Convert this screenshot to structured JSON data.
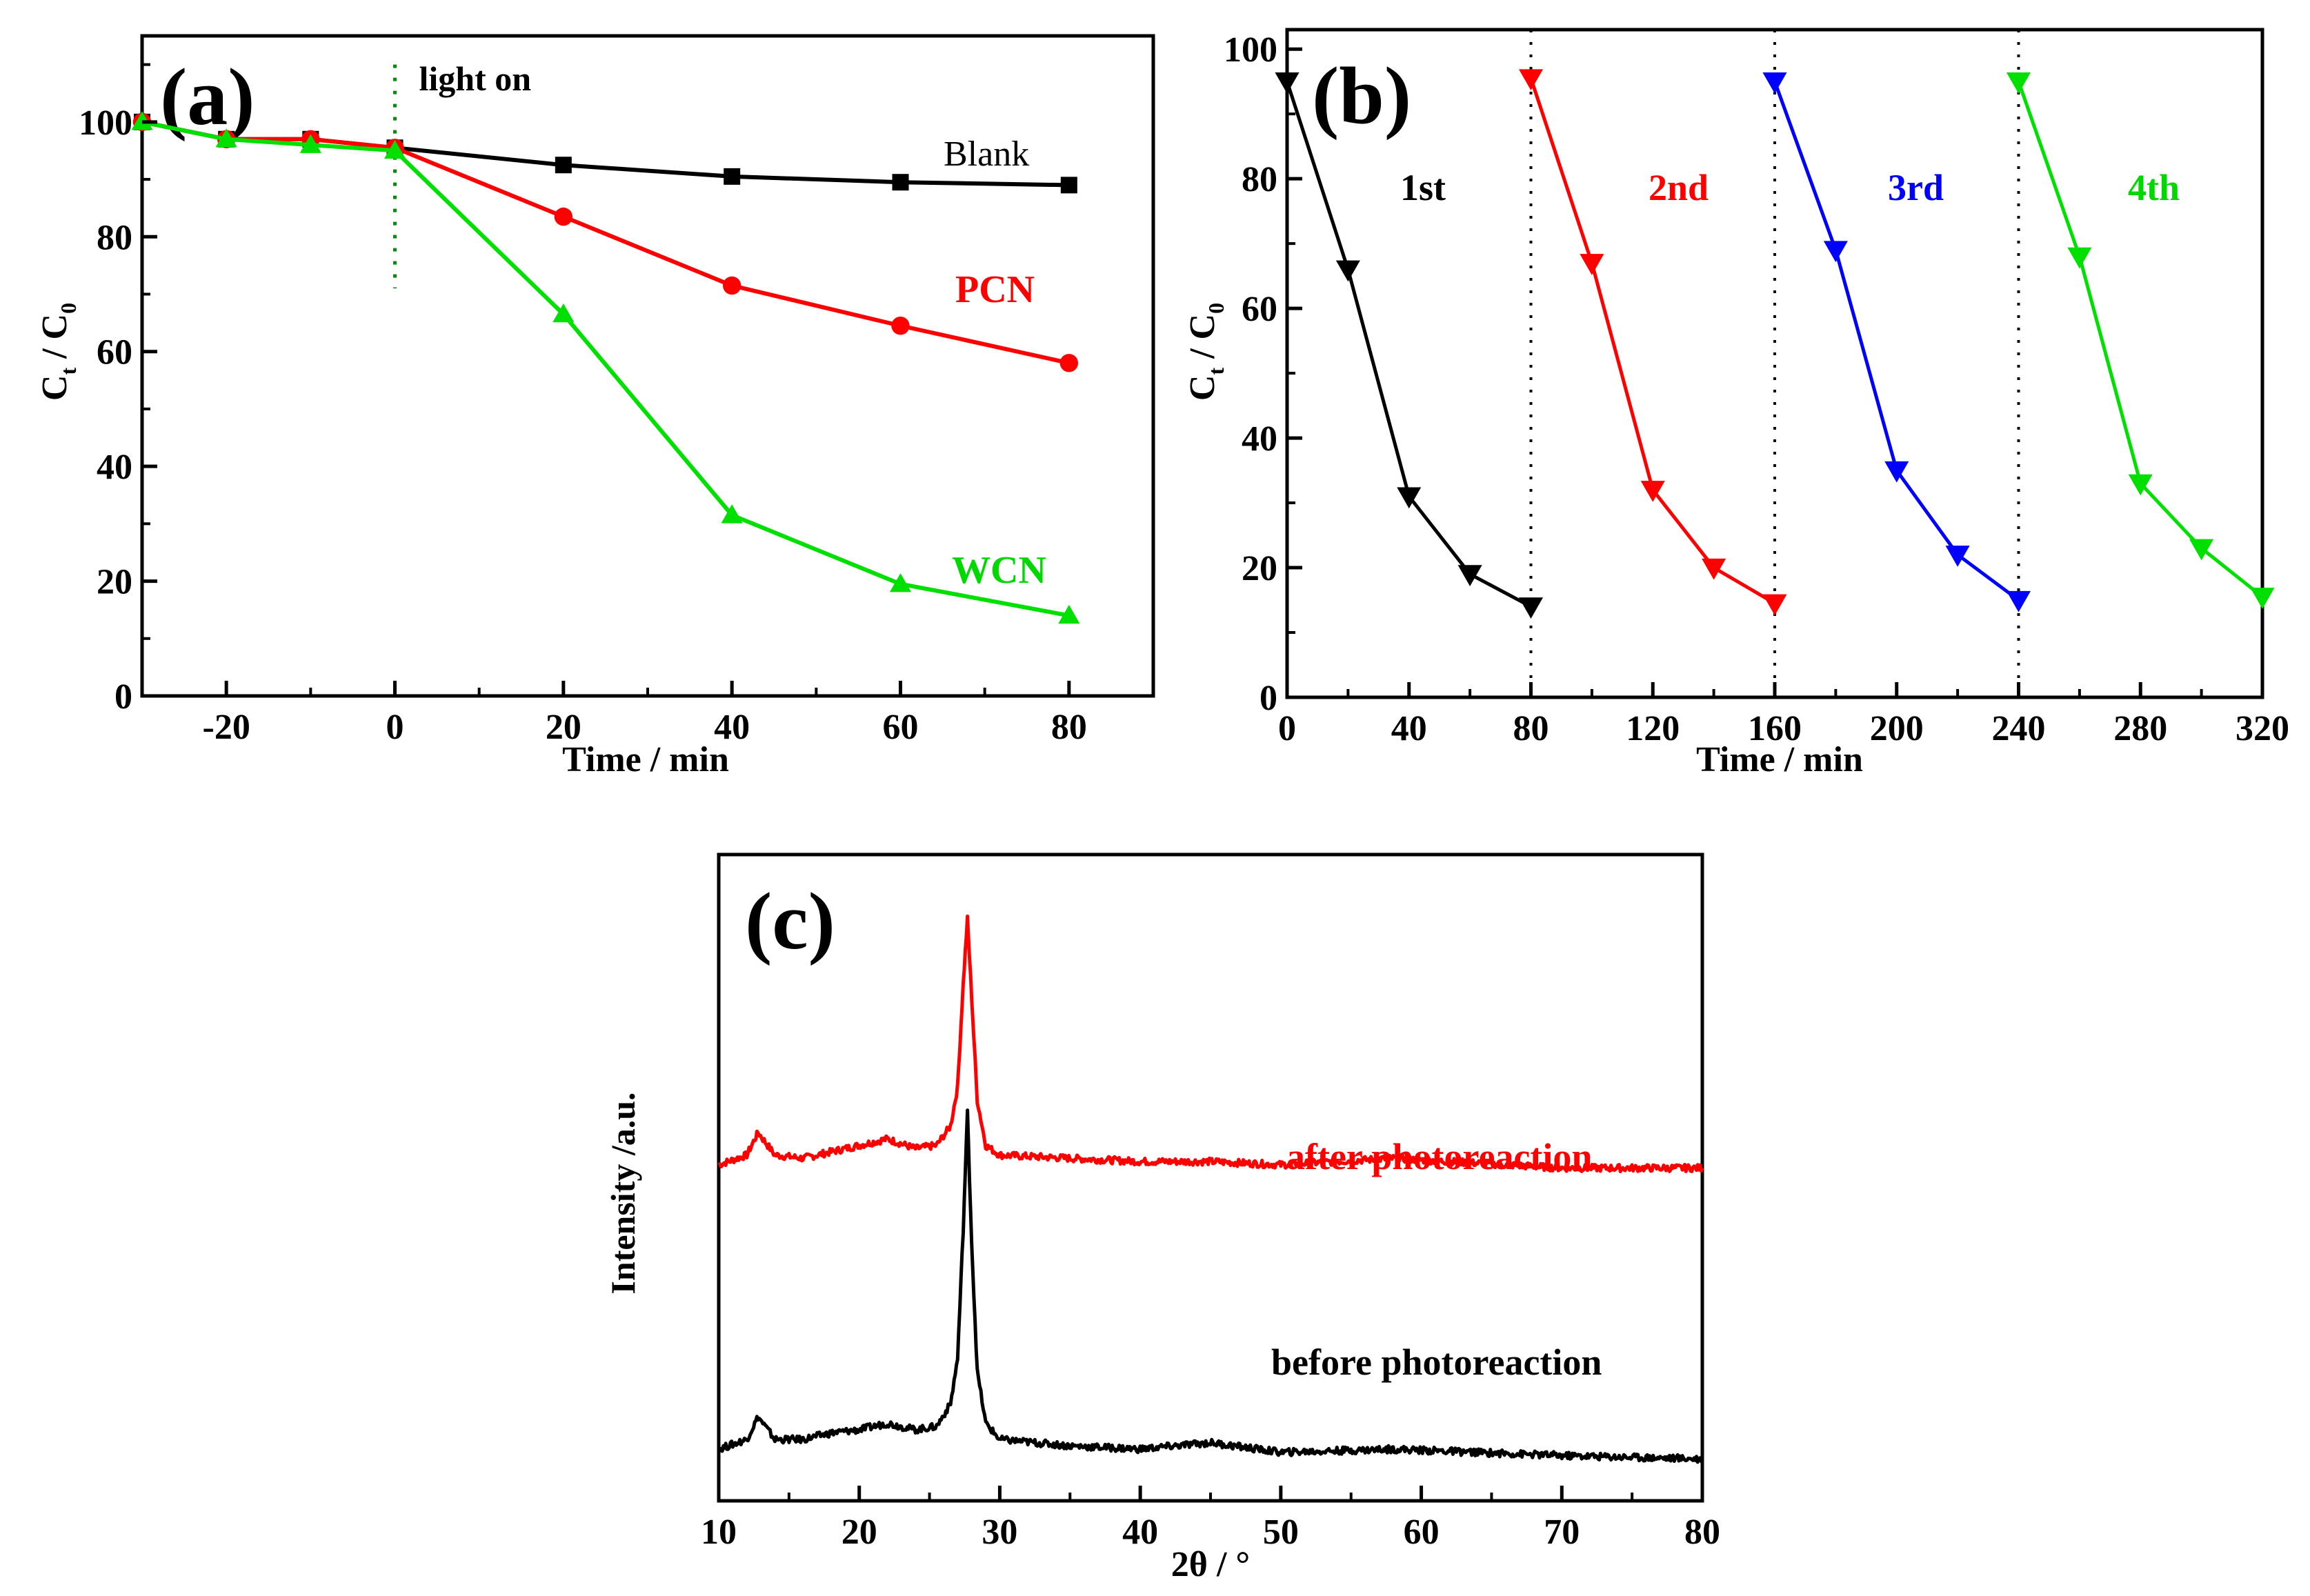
{
  "chart_data": [
    {
      "type": "line",
      "panel_label": "(a)",
      "xlabel": "Time / min",
      "ylabel": "C",
      "ylabel_sub": "t",
      "ylabel_sep": " / C",
      "ylabel_sub2": "0",
      "xlim": [
        -30,
        90
      ],
      "ylim": [
        0,
        115
      ],
      "xticks": [
        -20,
        0,
        20,
        40,
        60,
        80
      ],
      "yticks": [
        0,
        20,
        40,
        60,
        80,
        100
      ],
      "annotation": {
        "text": "light on",
        "x": 0
      },
      "series": [
        {
          "name": "Blank",
          "color": "#000000",
          "marker": "square",
          "x": [
            -30,
            -20,
            -10,
            0,
            20,
            40,
            60,
            80
          ],
          "y": [
            100,
            97,
            97,
            95.5,
            92.5,
            90.5,
            89.5,
            89
          ]
        },
        {
          "name": "PCN",
          "color": "#ff0000",
          "marker": "circle",
          "x": [
            -30,
            -20,
            -10,
            0,
            20,
            40,
            60,
            80
          ],
          "y": [
            100,
            97,
            97,
            95.5,
            83.5,
            71.5,
            64.5,
            58
          ]
        },
        {
          "name": "WCN",
          "color": "#00e000",
          "marker": "triangle-up",
          "x": [
            -30,
            -20,
            -10,
            0,
            20,
            40,
            60,
            80
          ],
          "y": [
            100,
            97,
            96,
            95,
            66.5,
            31.5,
            19.5,
            14
          ]
        }
      ]
    },
    {
      "type": "line",
      "panel_label": "(b)",
      "xlabel": "Time / min",
      "ylabel": "C",
      "ylabel_sub": "t",
      "ylabel_sep": " / C",
      "ylabel_sub2": "0",
      "xlim": [
        0,
        320
      ],
      "ylim": [
        0,
        103
      ],
      "xticks": [
        0,
        40,
        80,
        120,
        160,
        200,
        240,
        280,
        320
      ],
      "yticks": [
        0,
        20,
        40,
        60,
        80,
        100
      ],
      "cycle_dividers": [
        80,
        160,
        240
      ],
      "series": [
        {
          "name": "1st",
          "color": "#000000",
          "marker": "triangle-down",
          "x": [
            0,
            20,
            40,
            60,
            80
          ],
          "y": [
            95,
            66,
            31,
            19,
            14
          ]
        },
        {
          "name": "2nd",
          "color": "#ff0000",
          "marker": "triangle-down",
          "x": [
            80,
            100,
            120,
            140,
            160
          ],
          "y": [
            95.5,
            67,
            32,
            20,
            14.5
          ]
        },
        {
          "name": "3rd",
          "color": "#0000ff",
          "marker": "triangle-down",
          "x": [
            160,
            180,
            200,
            220,
            240
          ],
          "y": [
            95,
            69,
            35,
            22,
            15
          ]
        },
        {
          "name": "4th",
          "color": "#00e000",
          "marker": "triangle-down",
          "x": [
            240,
            260,
            280,
            300,
            320
          ],
          "y": [
            95,
            68,
            33,
            23,
            15.5
          ]
        }
      ]
    },
    {
      "type": "line",
      "panel_label": "(c)",
      "xlabel": "2θ / °",
      "ylabel": "Intensity /a.u.",
      "xlim": [
        10,
        80
      ],
      "ylim": [
        0,
        100
      ],
      "xticks": [
        10,
        20,
        30,
        40,
        50,
        60,
        70,
        80
      ],
      "series": [
        {
          "name": "after photoreaction",
          "color": "#ff0000",
          "x": [
            10,
            12,
            12.8,
            14,
            16,
            18,
            20,
            22,
            24,
            25.5,
            26.5,
            27,
            27.4,
            27.7,
            28.0,
            28.4,
            29,
            30,
            35,
            40,
            45,
            50,
            58,
            70,
            80
          ],
          "y": [
            52,
            53.5,
            57,
            53.5,
            53,
            54,
            55,
            56,
            54.5,
            55,
            58,
            64,
            80,
            90,
            78,
            62,
            55,
            53.5,
            53,
            52.5,
            52.5,
            52,
            53,
            51.5,
            51.5
          ]
        },
        {
          "name": "before photoreaction",
          "color": "#000000",
          "x": [
            10,
            12,
            12.8,
            14,
            16,
            18,
            20,
            22,
            24,
            25.5,
            26.5,
            27,
            27.4,
            27.7,
            28.0,
            28.4,
            29,
            30,
            35,
            40,
            45,
            50,
            58,
            70,
            80
          ],
          "y": [
            8,
            9.5,
            13,
            9.5,
            9.5,
            10.5,
            11,
            12,
            11,
            11.5,
            15,
            22,
            42,
            60,
            40,
            20,
            12,
            9.5,
            8.5,
            8,
            9,
            7.5,
            8,
            7,
            6.5
          ]
        }
      ]
    }
  ]
}
